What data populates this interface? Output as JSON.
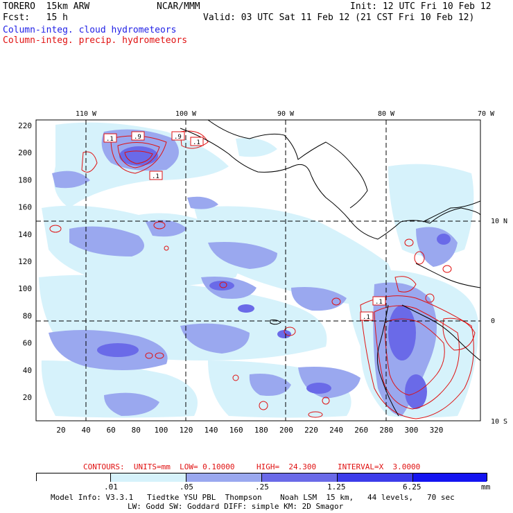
{
  "header": {
    "model": "TORERO  15km ARW",
    "center": "NCAR/MMM",
    "init": "Init: 12 UTC Fri 10 Feb 12",
    "fcst": "Fcst:   15 h",
    "valid": "Valid: 03 UTC Sat 11 Feb 12 (21 CST Fri 10 Feb 12)"
  },
  "legend": {
    "cloud": "Column-integ. cloud hydrometeors",
    "precip": "Column-integ. precip. hydrometeors",
    "cloud_color": "#1e1ee6",
    "precip_color": "#e01010"
  },
  "map": {
    "lon_labels": [
      "110 W",
      "100 W",
      "90 W",
      "80 W",
      "70 W"
    ],
    "lat_labels": [
      "10 N",
      "0",
      "10 S"
    ],
    "y_ticks": [
      "220",
      "200",
      "180",
      "160",
      "140",
      "120",
      "100",
      "80",
      "60",
      "40",
      "20"
    ],
    "x_ticks": [
      "20",
      "40",
      "60",
      "80",
      "100",
      "120",
      "140",
      "160",
      "180",
      "200",
      "220",
      "240",
      "260",
      "280",
      "300",
      "320"
    ],
    "contour_labels": [
      ".1",
      ".9",
      ".9",
      ".1",
      ".1",
      ".1",
      ".1"
    ]
  },
  "contours_info": {
    "units": "CONTOURS:  UNITS=mm  LOW= 0.10000",
    "high": "HIGH=  24.300",
    "interval": "INTERVAL=X  3.0000"
  },
  "colorbar": {
    "labels": [
      ".01",
      ".05",
      ".25",
      "1.25",
      "6.25"
    ],
    "unit": "mm",
    "colors": [
      "#ffffff",
      "#d6f2fb",
      "#9aa8ef",
      "#6a6ae8",
      "#3c3cea",
      "#1414f0"
    ]
  },
  "footer": {
    "line1": "Model Info: V3.3.1   Tiedtke YSU PBL  Thompson    Noah LSM  15 km,   44 levels,   70 sec",
    "line2": "LW: Godd SW: Goddard DIFF: simple KM: 2D Smagor"
  }
}
